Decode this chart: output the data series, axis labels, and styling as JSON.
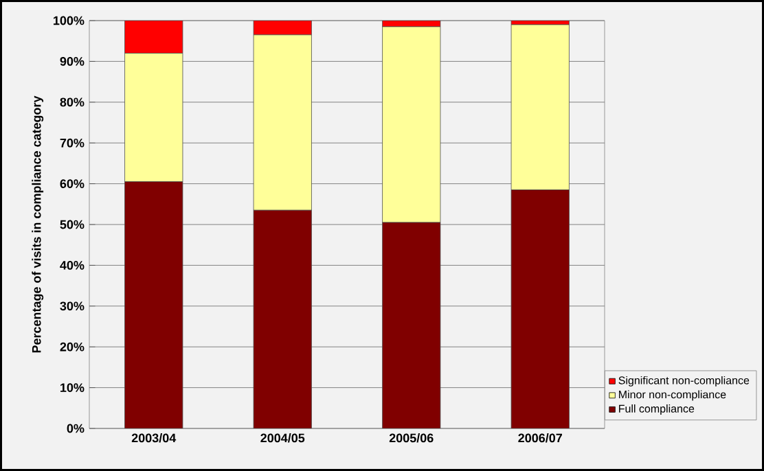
{
  "chart_data": {
    "type": "bar",
    "stacked": true,
    "ylabel": "Percentage of visits in compliance category",
    "categories": [
      "2003/04",
      "2004/05",
      "2005/06",
      "2006/07"
    ],
    "series": [
      {
        "name": "Full compliance",
        "color": "#800000",
        "values": [
          60.5,
          53.5,
          50.5,
          58.5
        ]
      },
      {
        "name": "Minor non-compliance",
        "color": "#ffff99",
        "values": [
          31.5,
          43,
          48,
          40.5
        ]
      },
      {
        "name": "Significant non-compliance",
        "color": "#ff0000",
        "values": [
          8,
          3.5,
          1.5,
          1
        ]
      }
    ],
    "ylim": [
      0,
      100
    ],
    "yticks": [
      {
        "value": 0,
        "label": "0%"
      },
      {
        "value": 10,
        "label": "10%"
      },
      {
        "value": 20,
        "label": "20%"
      },
      {
        "value": 30,
        "label": "30%"
      },
      {
        "value": 40,
        "label": "40%"
      },
      {
        "value": 50,
        "label": "50%"
      },
      {
        "value": 60,
        "label": "60%"
      },
      {
        "value": 70,
        "label": "70%"
      },
      {
        "value": 80,
        "label": "80%"
      },
      {
        "value": 90,
        "label": "90%"
      },
      {
        "value": 100,
        "label": "100%"
      }
    ],
    "grid": "y",
    "legend": "bottom right"
  }
}
